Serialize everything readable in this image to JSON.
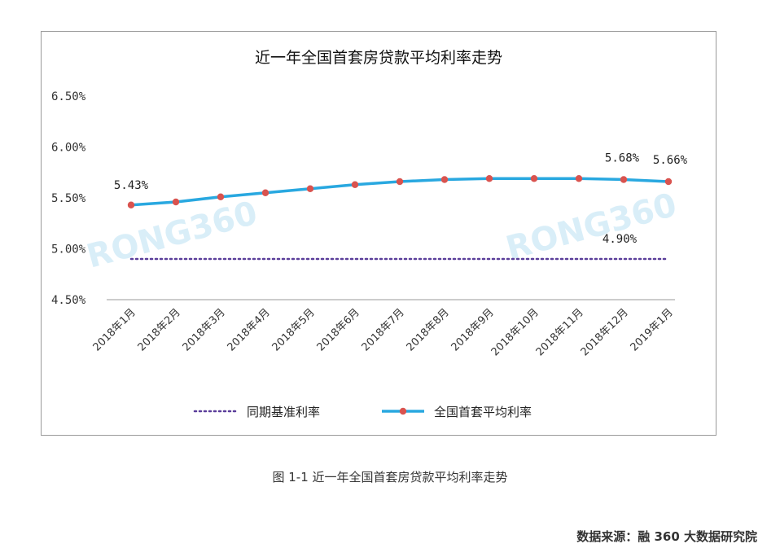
{
  "chart_data": {
    "type": "line",
    "title": "近一年全国首套房贷款平均利率走势",
    "categories": [
      "2018年1月",
      "2018年2月",
      "2018年3月",
      "2018年4月",
      "2018年5月",
      "2018年6月",
      "2018年7月",
      "2018年8月",
      "2018年9月",
      "2018年10月",
      "2018年11月",
      "2018年12月",
      "2019年1月"
    ],
    "series": [
      {
        "name": "全国首套平均利率",
        "values": [
          5.43,
          5.46,
          5.51,
          5.55,
          5.59,
          5.63,
          5.66,
          5.68,
          5.69,
          5.69,
          5.69,
          5.68,
          5.66
        ],
        "color": "#29a8e0",
        "marker_color": "#d9534f"
      },
      {
        "name": "同期基准利率",
        "values": [
          4.9,
          4.9,
          4.9,
          4.9,
          4.9,
          4.9,
          4.9,
          4.9,
          4.9,
          4.9,
          4.9,
          4.9,
          4.9
        ],
        "color": "#5b3e9a",
        "style": "dotted"
      }
    ],
    "ylim": [
      4.5,
      6.5
    ],
    "yticks": [
      "4.50%",
      "5.00%",
      "5.50%",
      "6.00%",
      "6.50%"
    ],
    "data_labels": [
      {
        "text": "5.43%",
        "series": 0,
        "index": 0
      },
      {
        "text": "5.68%",
        "series": 0,
        "index": 11
      },
      {
        "text": "5.66%",
        "series": 0,
        "index": 12
      },
      {
        "text": "4.90%",
        "series": 1,
        "index": 11
      }
    ],
    "legend_position": "bottom",
    "grid": false,
    "watermark": "RONG360"
  },
  "caption": "图 1-1  近一年全国首套房贷款平均利率走势",
  "source": "数据来源：融 360 大数据研究院"
}
